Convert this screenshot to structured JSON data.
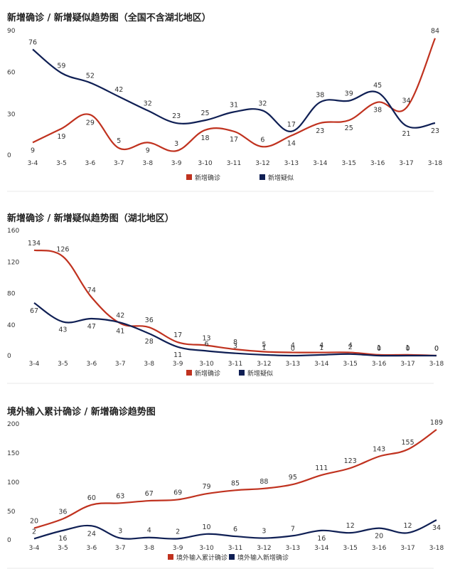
{
  "colors": {
    "red": "#c0321f",
    "navy": "#0f1f54"
  },
  "chart_data": [
    {
      "type": "line",
      "title": "新增确诊 / 新增疑似趋势图（全国不含湖北地区）",
      "categories": [
        "3-4",
        "3-5",
        "3-6",
        "3-7",
        "3-8",
        "3-9",
        "3-10",
        "3-11",
        "3-12",
        "3-13",
        "3-14",
        "3-15",
        "3-16",
        "3-17",
        "3-18"
      ],
      "series": [
        {
          "name": "新增确诊",
          "color": "#c0321f",
          "values": [
            9,
            19,
            29,
            5,
            9,
            3,
            18,
            17,
            6,
            14,
            23,
            25,
            38,
            34,
            84
          ]
        },
        {
          "name": "新增疑似",
          "color": "#0f1f54",
          "values": [
            76,
            59,
            52,
            42,
            32,
            23,
            25,
            31,
            32,
            17,
            38,
            39,
            45,
            21,
            23
          ]
        }
      ],
      "yticks": [
        0,
        30,
        60,
        90
      ],
      "ylim": [
        0,
        90
      ],
      "legend": "bottom"
    },
    {
      "type": "line",
      "title": "新增确诊 / 新增疑似趋势图（湖北地区）",
      "categories": [
        "3-4",
        "3-5",
        "3-6",
        "3-7",
        "3-8",
        "3-9",
        "3-10",
        "3-11",
        "3-12",
        "3-13",
        "3-14",
        "3-15",
        "3-16",
        "3-17",
        "3-18"
      ],
      "series": [
        {
          "name": "新增确诊",
          "color": "#c0321f",
          "values": [
            134,
            126,
            74,
            41,
            36,
            17,
            13,
            8,
            5,
            4,
            4,
            4,
            1,
            1,
            0
          ]
        },
        {
          "name": "新增疑似",
          "color": "#0f1f54",
          "values": [
            67,
            43,
            47,
            42,
            28,
            11,
            6,
            3,
            1,
            0,
            1,
            2,
            0,
            0,
            0
          ]
        }
      ],
      "yticks": [
        0,
        40,
        80,
        120,
        160
      ],
      "ylim": [
        0,
        160
      ],
      "legend": "bottom"
    },
    {
      "type": "line",
      "title": "境外输入累计确诊 / 新增确诊趋势图",
      "categories": [
        "3-4",
        "3-5",
        "3-6",
        "3-7",
        "3-8",
        "3-9",
        "3-10",
        "3-11",
        "3-12",
        "3-13",
        "3-14",
        "3-15",
        "3-16",
        "3-17",
        "3-18"
      ],
      "series": [
        {
          "name": "境外输入累计确诊",
          "color": "#c0321f",
          "values": [
            20,
            36,
            60,
            63,
            67,
            69,
            79,
            85,
            88,
            95,
            111,
            123,
            143,
            155,
            189
          ]
        },
        {
          "name": "境外输入新增确诊",
          "color": "#0f1f54",
          "values": [
            2,
            16,
            24,
            3,
            4,
            2,
            10,
            6,
            3,
            7,
            16,
            12,
            20,
            12,
            34
          ]
        }
      ],
      "yticks": [
        0,
        50,
        100,
        150,
        200
      ],
      "ylim": [
        0,
        200
      ],
      "legend": "bottom"
    }
  ]
}
